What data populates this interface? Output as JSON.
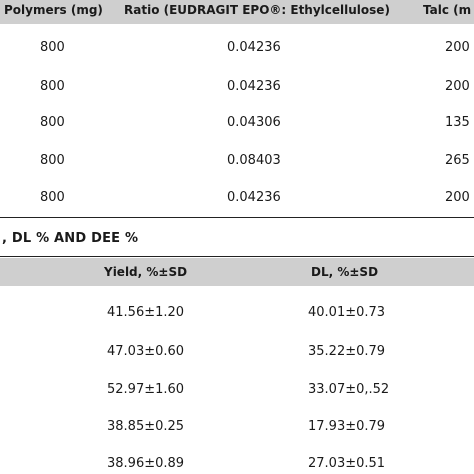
{
  "table_top": {
    "headers": [
      "Polymers (mg)",
      "Ratio (EUDRAGIT EPO®: Ethylcellulose)",
      "Talc (m"
    ],
    "rows": [
      [
        "800",
        "0.04236",
        "200"
      ],
      [
        "800",
        "0.04236",
        "200"
      ],
      [
        "800",
        "0.04306",
        "135"
      ],
      [
        "800",
        "0.08403",
        "265"
      ],
      [
        "800",
        "0.04236",
        "200"
      ]
    ]
  },
  "table_bottom": {
    "title": ", DL % AND DEE %",
    "headers": [
      "Yield, %±SD",
      "DL, %±SD"
    ],
    "rows": [
      [
        "41.56±1.20",
        "40.01±0.73"
      ],
      [
        "47.03±0.60",
        "35.22±0.79"
      ],
      [
        "52.97±1.60",
        "33.07±0,.52"
      ],
      [
        "38.85±0.25",
        "17.93±0.79"
      ],
      [
        "38.96±0.89",
        "27.03±0.51"
      ]
    ]
  }
}
